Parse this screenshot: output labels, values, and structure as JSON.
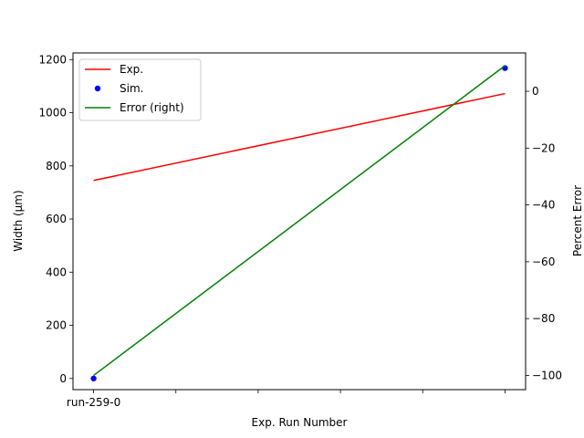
{
  "chart_data": {
    "type": "line",
    "categories": [
      "run-259-0",
      "",
      "",
      "",
      "",
      ""
    ],
    "xlabel": "Exp. Run Number",
    "ylabel": "Width  (μm)",
    "ylabel_right": "Percent Error",
    "ylim": [
      -42,
      1225
    ],
    "ylim_right": [
      -105.0,
      13.5
    ],
    "yticks": [
      0,
      200,
      400,
      600,
      800,
      1000,
      1200
    ],
    "yticks_right": [
      -100,
      -80,
      -60,
      -40,
      -20,
      0
    ],
    "legend_position": "upper-left",
    "grid": false,
    "series": [
      {
        "name": "Exp.",
        "kind": "line",
        "axis": "left",
        "color": "#ff0000",
        "points": [
          [
            0,
            745
          ],
          [
            5,
            1072
          ]
        ]
      },
      {
        "name": "Sim.",
        "kind": "scatter",
        "axis": "left",
        "color": "#0000ff",
        "points": [
          [
            0,
            0
          ],
          [
            5,
            1168
          ]
        ]
      },
      {
        "name": "Error (right)",
        "kind": "line",
        "axis": "right",
        "color": "#008000",
        "points": [
          [
            0,
            -100
          ],
          [
            5,
            9
          ]
        ]
      }
    ]
  }
}
